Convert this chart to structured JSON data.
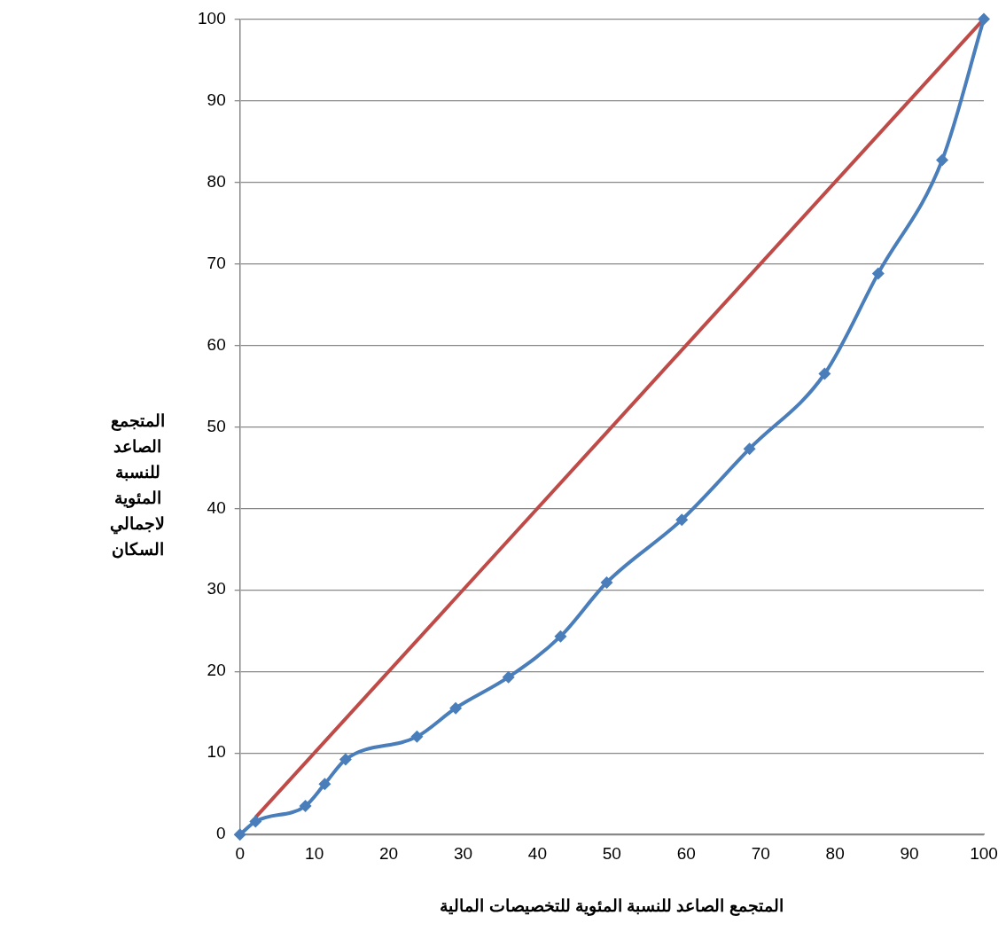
{
  "chart_data": {
    "type": "line",
    "xlabel": "المتجمع الصاعد للنسبة المئوية للتخصيصات المالية",
    "ylabel": "المتجمع الصاعد للنسبة المئوية لاجمالي السكان",
    "xlim": [
      0,
      100
    ],
    "xticks": [
      0,
      10,
      20,
      30,
      40,
      50,
      60,
      70,
      80,
      90,
      100
    ],
    "ylim": [
      0,
      100
    ],
    "yticks": [
      0,
      10,
      20,
      30,
      40,
      50,
      60,
      70,
      80,
      90,
      100
    ],
    "grid": "y",
    "legend": false,
    "series": [
      {
        "color": "#4a7ebb",
        "marker": "diamond",
        "x": [
          0,
          2.1,
          8.8,
          11.4,
          14.2,
          23.8,
          29.0,
          36.1,
          43.1,
          49.3,
          59.4,
          68.5,
          78.6,
          85.8,
          94.4,
          100
        ],
        "values": [
          0,
          1.6,
          3.5,
          6.2,
          9.2,
          12.0,
          15.5,
          19.3,
          24.3,
          30.9,
          38.6,
          47.3,
          56.5,
          68.8,
          82.7,
          100
        ]
      },
      {
        "color": "#be4b48",
        "marker": "none",
        "x": [
          2.1,
          100
        ],
        "values": [
          2.1,
          100
        ]
      }
    ]
  }
}
